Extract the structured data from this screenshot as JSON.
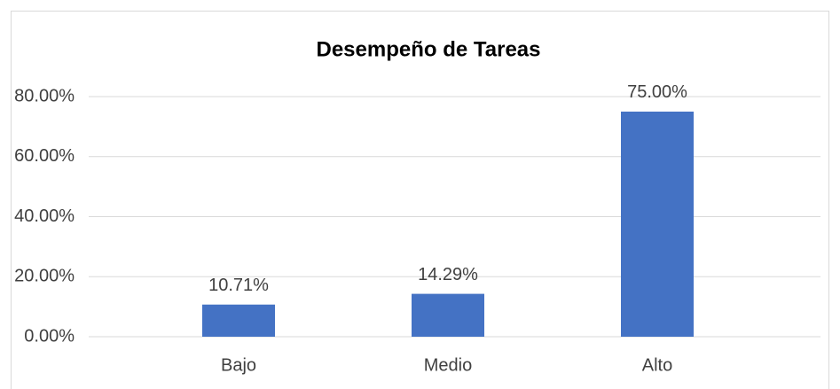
{
  "chart_data": {
    "type": "bar",
    "title": "Desempeño de Tareas",
    "categories": [
      "Bajo",
      "Medio",
      "Alto"
    ],
    "values": [
      10.71,
      14.29,
      75.0
    ],
    "value_labels": [
      "10.71%",
      "14.29%",
      "75.00%"
    ],
    "color": "#4472c4",
    "ylim": [
      0,
      80
    ],
    "yticks": [
      {
        "value": 0,
        "label": "0.00%"
      },
      {
        "value": 20,
        "label": "20.00%"
      },
      {
        "value": 40,
        "label": "40.00%"
      },
      {
        "value": 60,
        "label": "60.00%"
      },
      {
        "value": 80,
        "label": "80.00%"
      }
    ],
    "grid": true
  }
}
